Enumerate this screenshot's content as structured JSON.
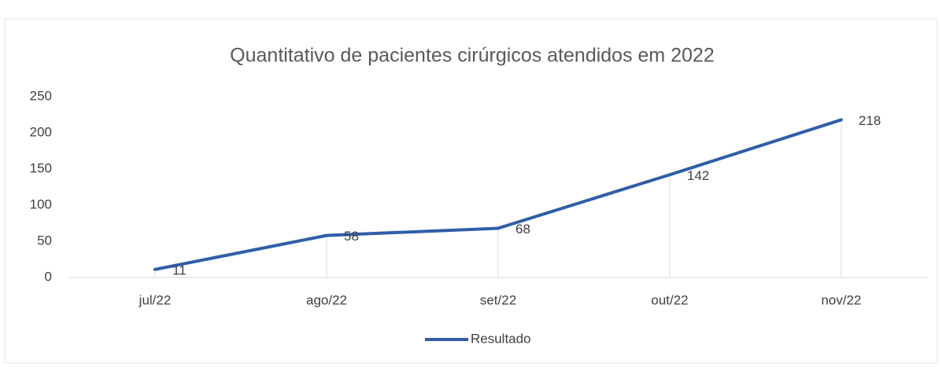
{
  "chart_data": {
    "type": "line",
    "title": "Quantitativo de pacientes cirúrgicos atendidos em 2022",
    "categories": [
      "jul/22",
      "ago/22",
      "set/22",
      "out/22",
      "nov/22"
    ],
    "series": [
      {
        "name": "Resultado",
        "color": "#2f5ea8",
        "values": [
          11,
          58,
          68,
          142,
          218
        ]
      }
    ],
    "ylim": [
      0,
      250
    ],
    "yticks": [
      0,
      50,
      100,
      150,
      200,
      250
    ],
    "grid": false,
    "legend": "bottom"
  }
}
